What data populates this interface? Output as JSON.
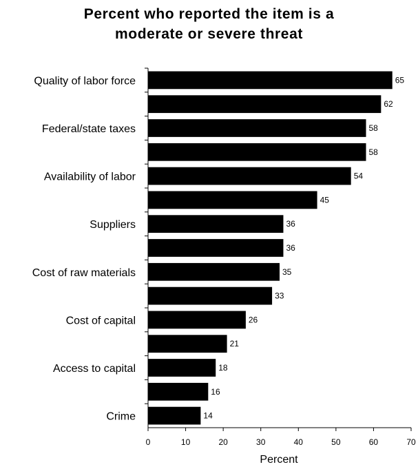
{
  "chart_data": {
    "type": "bar",
    "orientation": "horizontal",
    "title": "Percent who reported the item is a moderate or severe threat",
    "title_lines": [
      "Percent who reported the item is a",
      "moderate or severe threat"
    ],
    "xlabel": "Percent",
    "ylabel": "",
    "xlim": [
      0,
      70
    ],
    "xticks": [
      0,
      10,
      20,
      30,
      40,
      50,
      60,
      70
    ],
    "grid": false,
    "legend": "none",
    "bar_color": "#000000",
    "categories": [
      "Quality of labor force",
      "",
      "Federal/state taxes",
      "",
      "Availability of labor",
      "",
      "Suppliers",
      "",
      "Cost of raw materials",
      "",
      "Cost of capital",
      "",
      "Access to capital",
      "",
      "Crime"
    ],
    "values": [
      65,
      62,
      58,
      58,
      54,
      45,
      36,
      36,
      35,
      33,
      26,
      21,
      18,
      16,
      14
    ]
  }
}
